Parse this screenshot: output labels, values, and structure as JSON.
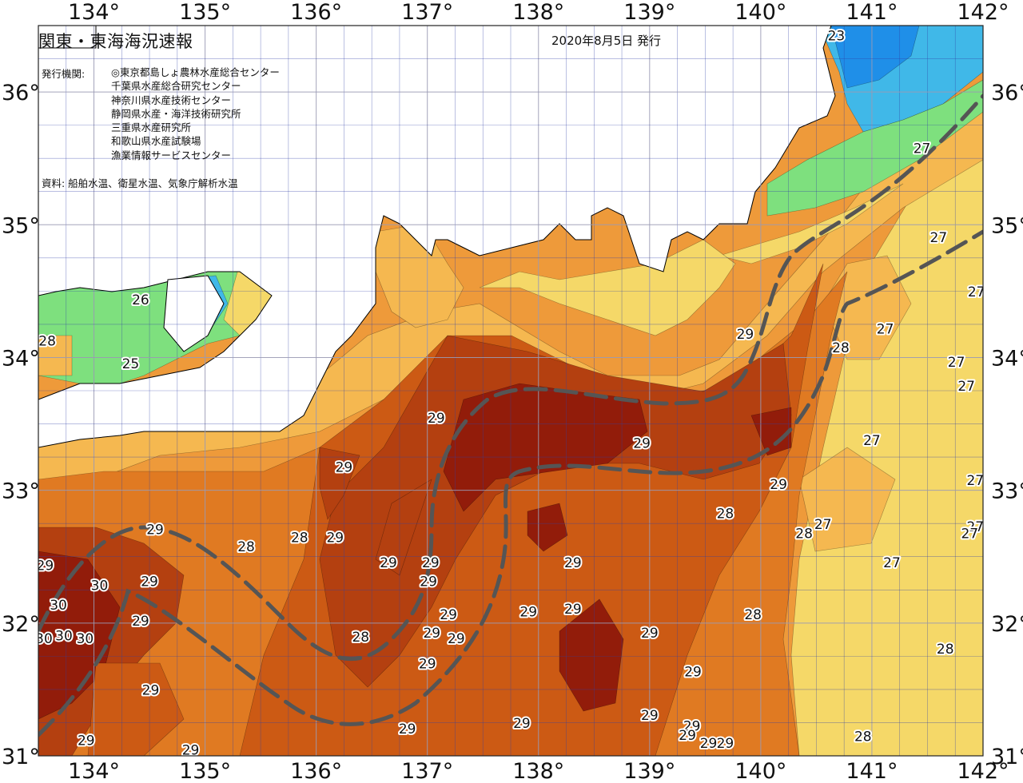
{
  "title": "関東・東海海況速報",
  "issue_date": "2020年8月5日 発行",
  "issuer_label": "発行機関:",
  "issuers": [
    "◎東京都島しょ農林水産総合センター",
    "千葉県水産総合研究センター",
    "神奈川県水産技術センター",
    "静岡県水産・海洋技術研究所",
    "三重県水産研究所",
    "和歌山県水産試験場",
    "漁業情報サービスセンター"
  ],
  "sources": "資料: 船舶水温、衛星水温、気象庁解析水温",
  "map": {
    "lon_range": [
      133.5,
      142
    ],
    "lat_range": [
      31,
      36.5
    ],
    "lon_ticks": [
      {
        "value": 134,
        "label": "134°"
      },
      {
        "value": 135,
        "label": "135°"
      },
      {
        "value": 136,
        "label": "136°"
      },
      {
        "value": 137,
        "label": "137°"
      },
      {
        "value": 138,
        "label": "138°"
      },
      {
        "value": 139,
        "label": "139°"
      },
      {
        "value": 140,
        "label": "140°"
      },
      {
        "value": 141,
        "label": "141°"
      },
      {
        "value": 142,
        "label": "142°"
      }
    ],
    "lat_ticks": [
      {
        "value": 31,
        "label": "31°"
      },
      {
        "value": 32,
        "label": "32°"
      },
      {
        "value": 33,
        "label": "33°"
      },
      {
        "value": 34,
        "label": "34°"
      },
      {
        "value": 35,
        "label": "35°"
      },
      {
        "value": 36,
        "label": "36°"
      }
    ],
    "grid_step_deg": 0.25,
    "temperature_colors": {
      "23": "#1f8fe8",
      "24": "#40b8e8",
      "25": "#60d8d8",
      "26": "#7ee07e",
      "27": "#f5d868",
      "27.5": "#f5b850",
      "28": "#ee9a3a",
      "28.5": "#e07a22",
      "29": "#cc5a14",
      "29.5": "#b44010",
      "30": "#921c0a"
    },
    "land_color": "#ffffff",
    "kuroshio_color": "#555555",
    "isotherm_labels": [
      {
        "text": "23",
        "lon": 140.68,
        "lat": 36.42
      },
      {
        "text": "26",
        "lon": 134.42,
        "lat": 34.43
      },
      {
        "text": "28",
        "lon": 133.58,
        "lat": 34.12
      },
      {
        "text": "25",
        "lon": 134.33,
        "lat": 33.95
      },
      {
        "text": "27",
        "lon": 141.45,
        "lat": 35.57
      },
      {
        "text": "27",
        "lon": 141.6,
        "lat": 34.9
      },
      {
        "text": "27",
        "lon": 141.94,
        "lat": 34.49
      },
      {
        "text": "27",
        "lon": 141.12,
        "lat": 34.21
      },
      {
        "text": "28",
        "lon": 140.72,
        "lat": 34.07
      },
      {
        "text": "29",
        "lon": 139.86,
        "lat": 34.17
      },
      {
        "text": "27",
        "lon": 141.76,
        "lat": 33.96
      },
      {
        "text": "27",
        "lon": 141.85,
        "lat": 33.78
      },
      {
        "text": "29",
        "lon": 137.08,
        "lat": 33.54
      },
      {
        "text": "29",
        "lon": 138.93,
        "lat": 33.35
      },
      {
        "text": "27",
        "lon": 141.0,
        "lat": 33.37
      },
      {
        "text": "29",
        "lon": 136.25,
        "lat": 33.17
      },
      {
        "text": "27",
        "lon": 141.93,
        "lat": 33.07
      },
      {
        "text": "29",
        "lon": 140.16,
        "lat": 33.04
      },
      {
        "text": "28",
        "lon": 139.68,
        "lat": 32.82
      },
      {
        "text": "27",
        "lon": 140.56,
        "lat": 32.74
      },
      {
        "text": "28",
        "lon": 140.39,
        "lat": 32.67
      },
      {
        "text": "27",
        "lon": 141.93,
        "lat": 32.72
      },
      {
        "text": "27",
        "lon": 141.88,
        "lat": 32.67
      },
      {
        "text": "29",
        "lon": 134.55,
        "lat": 32.7
      },
      {
        "text": "28",
        "lon": 135.37,
        "lat": 32.57
      },
      {
        "text": "28",
        "lon": 135.85,
        "lat": 32.64
      },
      {
        "text": "29",
        "lon": 136.17,
        "lat": 32.64
      },
      {
        "text": "29",
        "lon": 136.65,
        "lat": 32.45
      },
      {
        "text": "29",
        "lon": 137.03,
        "lat": 32.45
      },
      {
        "text": "29",
        "lon": 138.31,
        "lat": 32.45
      },
      {
        "text": "27",
        "lon": 141.18,
        "lat": 32.45
      },
      {
        "text": "29",
        "lon": 133.56,
        "lat": 32.43
      },
      {
        "text": "29",
        "lon": 137.01,
        "lat": 32.31
      },
      {
        "text": "29",
        "lon": 134.5,
        "lat": 32.31
      },
      {
        "text": "30",
        "lon": 134.05,
        "lat": 32.28
      },
      {
        "text": "30",
        "lon": 133.68,
        "lat": 32.13
      },
      {
        "text": "29",
        "lon": 137.19,
        "lat": 32.06
      },
      {
        "text": "29",
        "lon": 137.91,
        "lat": 32.08
      },
      {
        "text": "29",
        "lon": 138.31,
        "lat": 32.1
      },
      {
        "text": "28",
        "lon": 139.93,
        "lat": 32.06
      },
      {
        "text": "29",
        "lon": 134.42,
        "lat": 32.01
      },
      {
        "text": "29",
        "lon": 137.04,
        "lat": 31.92
      },
      {
        "text": "30",
        "lon": 133.73,
        "lat": 31.9
      },
      {
        "text": "30",
        "lon": 133.55,
        "lat": 31.88
      },
      {
        "text": "30",
        "lon": 133.92,
        "lat": 31.88
      },
      {
        "text": "29",
        "lon": 139.0,
        "lat": 31.92
      },
      {
        "text": "28",
        "lon": 136.4,
        "lat": 31.89
      },
      {
        "text": "29",
        "lon": 137.26,
        "lat": 31.88
      },
      {
        "text": "28",
        "lon": 141.66,
        "lat": 31.8
      },
      {
        "text": "29",
        "lon": 137.0,
        "lat": 31.69
      },
      {
        "text": "29",
        "lon": 139.39,
        "lat": 31.63
      },
      {
        "text": "29",
        "lon": 134.51,
        "lat": 31.49
      },
      {
        "text": "29",
        "lon": 139.0,
        "lat": 31.3
      },
      {
        "text": "29",
        "lon": 139.38,
        "lat": 31.22
      },
      {
        "text": "29",
        "lon": 139.34,
        "lat": 31.15
      },
      {
        "text": "29",
        "lon": 137.85,
        "lat": 31.24
      },
      {
        "text": "29",
        "lon": 136.82,
        "lat": 31.2
      },
      {
        "text": "28",
        "lon": 140.92,
        "lat": 31.14
      },
      {
        "text": "29",
        "lon": 133.93,
        "lat": 31.11
      },
      {
        "text": "29",
        "lon": 139.53,
        "lat": 31.09
      },
      {
        "text": "29",
        "lon": 139.68,
        "lat": 31.09
      },
      {
        "text": "29",
        "lon": 134.87,
        "lat": 31.04
      }
    ]
  }
}
